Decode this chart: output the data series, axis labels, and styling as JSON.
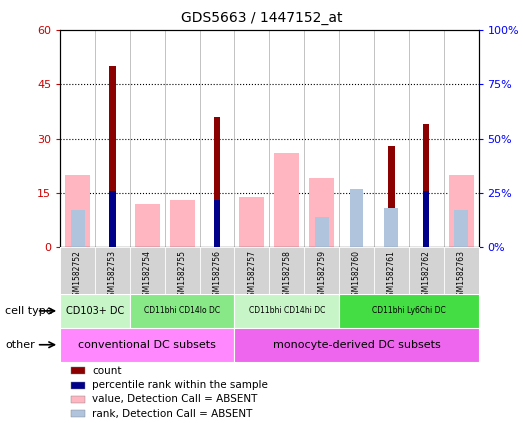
{
  "title": "GDS5663 / 1447152_at",
  "samples": [
    "GSM1582752",
    "GSM1582753",
    "GSM1582754",
    "GSM1582755",
    "GSM1582756",
    "GSM1582757",
    "GSM1582758",
    "GSM1582759",
    "GSM1582760",
    "GSM1582761",
    "GSM1582762",
    "GSM1582763"
  ],
  "count_values": [
    0,
    50,
    0,
    0,
    36,
    0,
    0,
    0,
    0,
    28,
    34,
    0
  ],
  "percentile_values": [
    0,
    26,
    0,
    0,
    22,
    0,
    0,
    0,
    0,
    0,
    26,
    0
  ],
  "absent_value_bars": [
    20,
    0,
    12,
    13,
    0,
    14,
    26,
    19,
    0,
    0,
    0,
    20
  ],
  "absent_rank_bars": [
    17,
    0,
    0,
    0,
    0,
    0,
    0,
    14,
    27,
    18,
    0,
    17
  ],
  "ylim_left": [
    0,
    60
  ],
  "ylim_right": [
    0,
    100
  ],
  "yticks_left": [
    0,
    15,
    30,
    45,
    60
  ],
  "yticks_right": [
    0,
    25,
    50,
    75,
    100
  ],
  "yticklabels_left": [
    "0",
    "15",
    "30",
    "45",
    "60"
  ],
  "yticklabels_right": [
    "0%",
    "25%",
    "50%",
    "75%",
    "100%"
  ],
  "cell_type_groups": [
    {
      "label": "CD103+ DC",
      "start": 0,
      "end": 2,
      "color": "#c8f5c8"
    },
    {
      "label": "CD11bhi CD14lo DC",
      "start": 2,
      "end": 5,
      "color": "#88e888"
    },
    {
      "label": "CD11bhi CD14hi DC",
      "start": 5,
      "end": 8,
      "color": "#c8f5c8"
    },
    {
      "label": "CD11bhi Ly6Chi DC",
      "start": 8,
      "end": 12,
      "color": "#44dd44"
    }
  ],
  "other_groups": [
    {
      "label": "conventional DC subsets",
      "start": 0,
      "end": 5,
      "color": "#ff88ff"
    },
    {
      "label": "monocyte-derived DC subsets",
      "start": 5,
      "end": 12,
      "color": "#ee66ee"
    }
  ],
  "bar_color_count": "#8b0000",
  "bar_color_percentile": "#00008b",
  "bar_color_absent_value": "#ffb6c1",
  "bar_color_absent_rank": "#b0c4de",
  "bg_color": "#d3d3d3",
  "legend_items": [
    {
      "label": "count",
      "color": "#8b0000"
    },
    {
      "label": "percentile rank within the sample",
      "color": "#00008b"
    },
    {
      "label": "value, Detection Call = ABSENT",
      "color": "#ffb6c1"
    },
    {
      "label": "rank, Detection Call = ABSENT",
      "color": "#b0c4de"
    }
  ]
}
